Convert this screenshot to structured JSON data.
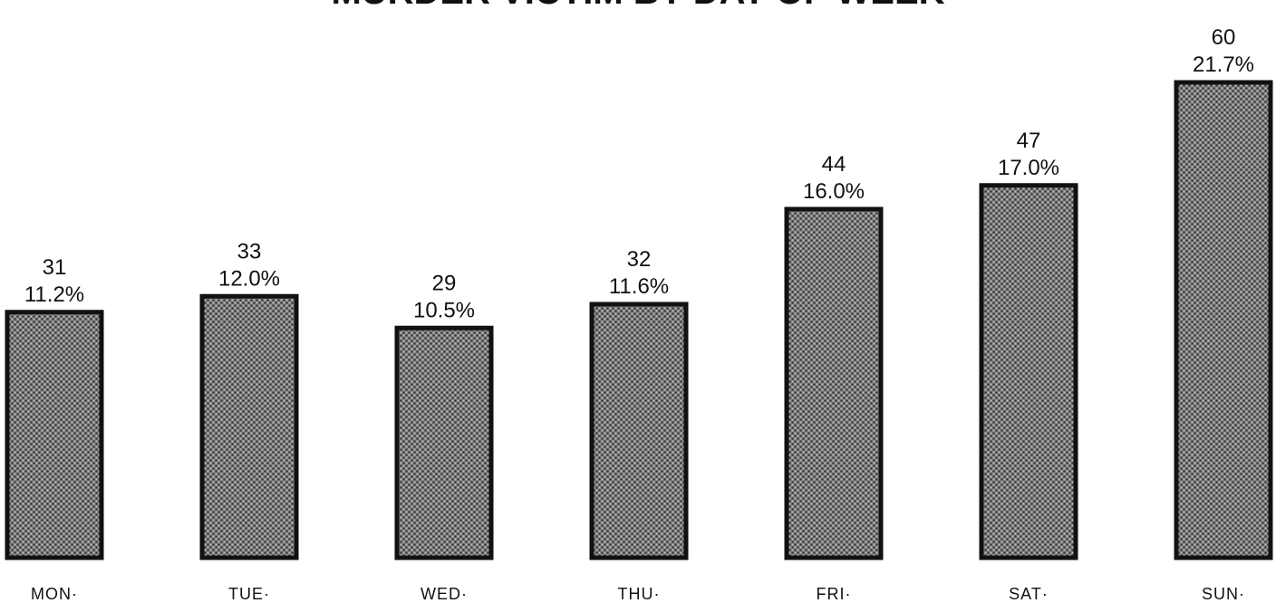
{
  "chart_data": {
    "type": "bar",
    "title": "MURDER VICTIM BY DAY OF WEEK",
    "categories": [
      "MON",
      "TUE",
      "WED",
      "THU",
      "FRI",
      "SAT",
      "SUN"
    ],
    "values": [
      31,
      33,
      29,
      32,
      44,
      47,
      60
    ],
    "percent_labels": [
      "11.2%",
      "12.0%",
      "10.5%",
      "11.6%",
      "16.0%",
      "17.0%",
      "21.7%"
    ],
    "category_suffix": "·",
    "xlabel": "",
    "ylabel": "",
    "ylim": [
      0,
      60
    ],
    "grid": false,
    "legend": "none",
    "bar_fill": "#8a8a8a",
    "bar_edge": "#111111",
    "text_color": "#111111"
  }
}
